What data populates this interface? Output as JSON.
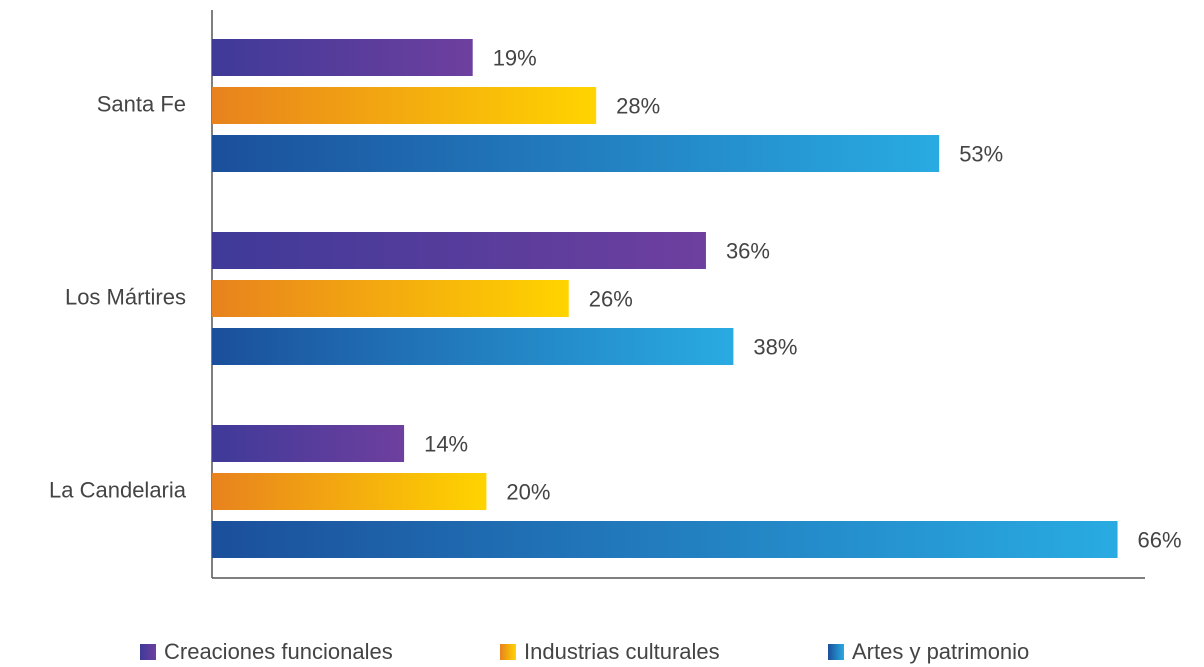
{
  "chart_data": {
    "type": "hbar",
    "categories": [
      "Santa Fe",
      "Los Mártires",
      "La Candelaria"
    ],
    "series": [
      {
        "name": "Creaciones funcionales",
        "color": "#5b3c9e",
        "gradient": [
          "#3f3a98",
          "#6e3f9f"
        ],
        "values": [
          19,
          36,
          14
        ],
        "value_labels": [
          "19%",
          "36%",
          "14%"
        ]
      },
      {
        "name": "Industrias culturales",
        "color": "#f5a81a",
        "gradient": [
          "#e8821e",
          "#ffd400"
        ],
        "values": [
          28,
          26,
          20
        ],
        "value_labels": [
          "28%",
          "26%",
          "20%"
        ]
      },
      {
        "name": "Artes y patrimonio",
        "color": "#2580c3",
        "gradient": [
          "#1b4f9b",
          "#29abe2"
        ],
        "values": [
          53,
          38,
          66
        ],
        "value_labels": [
          "53%",
          "38%",
          "66%"
        ]
      }
    ],
    "xlim": [
      0,
      68
    ],
    "legend": "bottom"
  }
}
